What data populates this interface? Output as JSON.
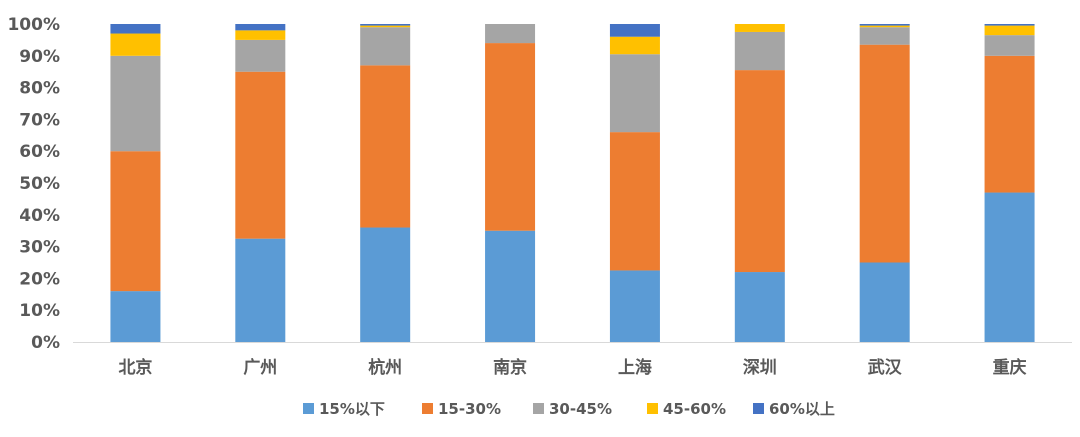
{
  "chart_data": {
    "type": "bar",
    "stacked": true,
    "percent_stacked": true,
    "title": "",
    "xlabel": "",
    "ylabel": "",
    "categories": [
      "北京",
      "广州",
      "杭州",
      "南京",
      "上海",
      "深圳",
      "武汉",
      "重庆"
    ],
    "series": [
      {
        "name": "15%以下",
        "color": "#5B9BD5",
        "values": [
          16,
          32.5,
          36,
          35,
          22.5,
          22,
          25,
          47
        ]
      },
      {
        "name": "15-30%",
        "color": "#ED7D31",
        "values": [
          44,
          52.5,
          51,
          59,
          43.5,
          63.5,
          68.5,
          43
        ]
      },
      {
        "name": "30-45%",
        "color": "#A5A5A5",
        "values": [
          30,
          10,
          12,
          6,
          24.5,
          12,
          5.5,
          6.5
        ]
      },
      {
        "name": "45-60%",
        "color": "#FFC000",
        "values": [
          7,
          3,
          0.5,
          0,
          5.5,
          2.5,
          0.5,
          3
        ]
      },
      {
        "name": "60%以上",
        "color": "#4472C4",
        "values": [
          3,
          2,
          0.5,
          0,
          4,
          0,
          0.5,
          0.5
        ]
      }
    ],
    "ylim": [
      0,
      100
    ],
    "yticks": [
      "0%",
      "10%",
      "20%",
      "30%",
      "40%",
      "50%",
      "60%",
      "70%",
      "80%",
      "90%",
      "100%"
    ],
    "grid": false,
    "legend_position": "bottom"
  }
}
